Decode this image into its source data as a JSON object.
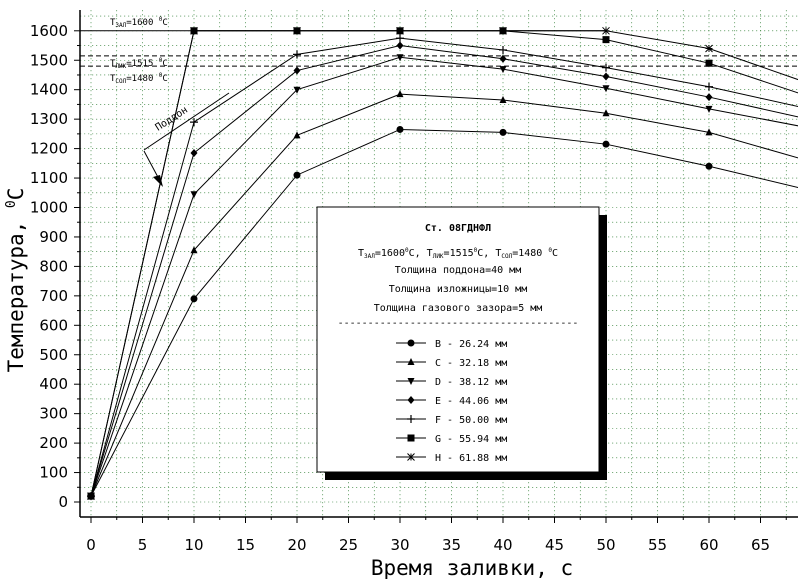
{
  "chart_data": {
    "type": "line",
    "title": "",
    "xlabel": "Время заливки, с",
    "ylabel_main": "Температура, ",
    "ylabel_sup": "0",
    "ylabel_unit": "C",
    "xlim": [
      0,
      69
    ],
    "ylim": [
      -50,
      1650
    ],
    "x_ticks": [
      0,
      5,
      10,
      15,
      20,
      25,
      30,
      35,
      40,
      45,
      50,
      55,
      60,
      65
    ],
    "y_ticks": [
      0,
      100,
      200,
      300,
      400,
      500,
      600,
      700,
      800,
      900,
      1000,
      1100,
      1200,
      1300,
      1400,
      1500,
      1600
    ],
    "grid": "dotted",
    "reference_lines": [
      {
        "y": 1600,
        "style": "solid",
        "label_main": "T",
        "label_sub": "ЗАЛ",
        "label_val": "=1600 ",
        "label_sup": "0",
        "label_unit": "C"
      },
      {
        "y": 1515,
        "style": "dashed",
        "label_main": "T",
        "label_sub": "ЛИК",
        "label_val": "=1515 ",
        "label_sup": "0",
        "label_unit": "C"
      },
      {
        "y": 1480,
        "style": "dashed",
        "label_main": "T",
        "label_sub": "СОЛ",
        "label_val": "=1480 ",
        "label_sup": "0",
        "label_unit": "C"
      }
    ],
    "annotation": {
      "text": "Поддон",
      "x": 10,
      "y": 1290
    },
    "series": [
      {
        "name": "B - 26.24 мм",
        "marker": "circle",
        "points": [
          [
            0,
            20
          ],
          [
            10,
            690
          ],
          [
            20,
            1110
          ],
          [
            30,
            1265
          ],
          [
            40,
            1255
          ],
          [
            50,
            1215
          ],
          [
            60,
            1140
          ],
          [
            69,
            1065
          ]
        ]
      },
      {
        "name": "C - 32.18 мм",
        "marker": "triangle-up",
        "points": [
          [
            0,
            20
          ],
          [
            10,
            855
          ],
          [
            20,
            1245
          ],
          [
            30,
            1385
          ],
          [
            40,
            1365
          ],
          [
            50,
            1320
          ],
          [
            60,
            1255
          ],
          [
            69,
            1165
          ]
        ]
      },
      {
        "name": "D - 38.12 мм",
        "marker": "triangle-down",
        "points": [
          [
            0,
            20
          ],
          [
            10,
            1045
          ],
          [
            20,
            1400
          ],
          [
            30,
            1510
          ],
          [
            40,
            1470
          ],
          [
            50,
            1405
          ],
          [
            60,
            1335
          ],
          [
            69,
            1275
          ]
        ]
      },
      {
        "name": "E - 44.06 мм",
        "marker": "diamond",
        "points": [
          [
            0,
            20
          ],
          [
            10,
            1185
          ],
          [
            20,
            1465
          ],
          [
            30,
            1550
          ],
          [
            40,
            1505
          ],
          [
            50,
            1445
          ],
          [
            60,
            1375
          ],
          [
            69,
            1305
          ]
        ]
      },
      {
        "name": "F - 50.00 мм",
        "marker": "plus",
        "points": [
          [
            0,
            20
          ],
          [
            10,
            1290
          ],
          [
            20,
            1520
          ],
          [
            30,
            1575
          ],
          [
            40,
            1535
          ],
          [
            50,
            1475
          ],
          [
            60,
            1410
          ],
          [
            69,
            1340
          ]
        ]
      },
      {
        "name": "G - 55.94 мм",
        "marker": "square",
        "points": [
          [
            0,
            20
          ],
          [
            10,
            1600
          ],
          [
            20,
            1600
          ],
          [
            30,
            1600
          ],
          [
            40,
            1600
          ],
          [
            50,
            1570
          ],
          [
            60,
            1490
          ],
          [
            69,
            1385
          ]
        ]
      },
      {
        "name": "H - 61.88 мм",
        "marker": "star",
        "points": [
          [
            0,
            20
          ],
          [
            10,
            1600
          ],
          [
            20,
            1600
          ],
          [
            30,
            1600
          ],
          [
            40,
            1600
          ],
          [
            50,
            1600
          ],
          [
            60,
            1540
          ],
          [
            69,
            1430
          ]
        ]
      }
    ],
    "legend": {
      "placement": "center-right",
      "title": "Ст. 08ГДНФЛ",
      "temps": {
        "t1_sub": "ЗАЛ",
        "t1_val": "=1600",
        "t1_sup": "0",
        "t1_unit": "C, ",
        "t2_sub": "ЛИК",
        "t2_val": "=1515",
        "t2_sup": "0",
        "t2_unit": "C, ",
        "t3_sub": "СОЛ",
        "t3_val": "=1480 ",
        "t3_sup": "0",
        "t3_unit": "C",
        "T": "T"
      },
      "lines": [
        "Толщина поддона=40 мм",
        "Толщина изложницы=10 мм",
        "Толщина газового зазора=5 мм"
      ],
      "separator": "----------------------------------------"
    }
  }
}
